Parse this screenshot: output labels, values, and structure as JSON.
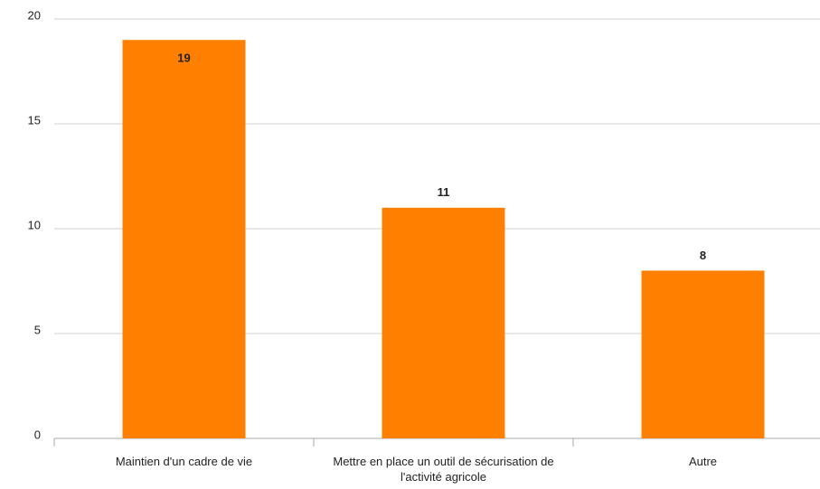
{
  "chart_data": {
    "type": "bar",
    "categories": [
      "Maintien d'un cadre de vie",
      "Mettre en place un outil de sécurisation de l'activité agricole",
      "Autre"
    ],
    "values": [
      19,
      11,
      8
    ],
    "color": "#ff8000",
    "ylim": [
      0,
      20
    ],
    "yticks": [
      0,
      5,
      10,
      15,
      20
    ],
    "grid": true
  }
}
